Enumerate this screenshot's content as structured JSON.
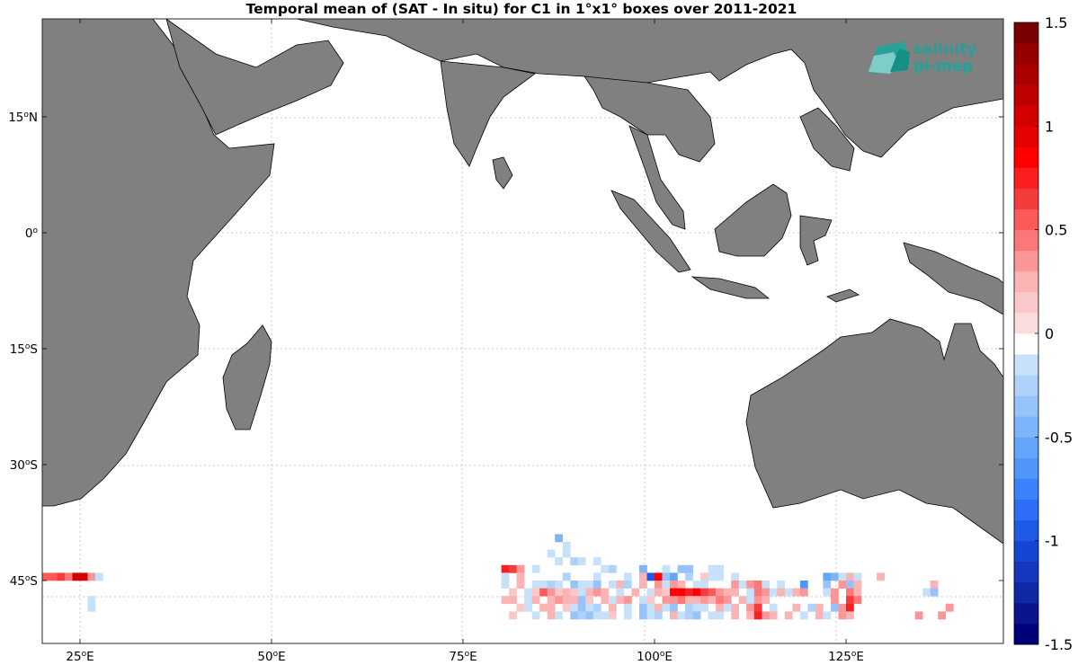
{
  "title": "Temporal mean of (SAT - In situ) for C1 in 1°x1° boxes over 2011-2021",
  "logo": {
    "line1": "salinity",
    "line2": "pi-mep",
    "color": "#1fa39a"
  },
  "colors": {
    "land": "#808080",
    "ocean": "#ffffff",
    "coast": "#000000"
  },
  "x_ticks": [
    {
      "value": 25,
      "label": "25",
      "suffix": "E"
    },
    {
      "value": 50,
      "label": "50",
      "suffix": "E"
    },
    {
      "value": 75,
      "label": "75",
      "suffix": "E"
    },
    {
      "value": 100,
      "label": "100",
      "suffix": "E"
    },
    {
      "value": 125,
      "label": "125",
      "suffix": "E"
    }
  ],
  "y_ticks": [
    {
      "value": 15,
      "label": "15",
      "suffix": "N"
    },
    {
      "value": 0,
      "label": "0",
      "suffix": ""
    },
    {
      "value": -15,
      "label": "15",
      "suffix": "S"
    },
    {
      "value": -30,
      "label": "30",
      "suffix": "S"
    },
    {
      "value": -45,
      "label": "45",
      "suffix": "S"
    }
  ],
  "colorbar": {
    "min": -1.5,
    "max": 1.5,
    "tick_values": [
      1.5,
      1,
      0.5,
      0,
      -0.5,
      -1,
      -1.5
    ],
    "tick_labels": [
      "1.5",
      "1",
      "0.5",
      "0",
      "-0.5",
      "-1",
      "-1.5"
    ],
    "colors_bottom_to_top": [
      "#000078",
      "#0a148c",
      "#0f28a5",
      "#1437be",
      "#1446d2",
      "#1e5ae6",
      "#2d6ef5",
      "#3c82fa",
      "#5096fa",
      "#64a5fa",
      "#7db4fa",
      "#96c3fa",
      "#afd2fa",
      "#c8e1fa",
      "#ffffff",
      "#fadcdc",
      "#fac8c8",
      "#fab4b4",
      "#fa9696",
      "#fa7878",
      "#fa5a5a",
      "#f53c3c",
      "#fa1e1e",
      "#ff0000",
      "#e60000",
      "#d20000",
      "#be0000",
      "#aa0000",
      "#960000",
      "#780000"
    ]
  },
  "chart_data": {
    "type": "heatmap",
    "title": "Temporal mean of (SAT - In situ) for C1 in 1°x1° boxes over 2011-2021",
    "x_range": [
      20,
      146
    ],
    "y_range": [
      -50,
      30
    ],
    "cell_size_deg": 1,
    "cells": [
      {
        "lon": 20.5,
        "lat": -44.5,
        "v": 0.55
      },
      {
        "lon": 21.5,
        "lat": -44.5,
        "v": 0.5
      },
      {
        "lon": 22.5,
        "lat": -44.5,
        "v": 0.6
      },
      {
        "lon": 23.5,
        "lat": -44.5,
        "v": 0.45
      },
      {
        "lon": 24.5,
        "lat": -44.5,
        "v": 1.0
      },
      {
        "lon": 25.5,
        "lat": -44.5,
        "v": 1.0
      },
      {
        "lon": 26.5,
        "lat": -44.5,
        "v": 0.3
      },
      {
        "lon": 27.5,
        "lat": -44.5,
        "v": -0.1
      },
      {
        "lon": 26.5,
        "lat": -47.5,
        "v": -0.1
      },
      {
        "lon": 26.5,
        "lat": -48.5,
        "v": -0.1
      },
      {
        "lon": 87.5,
        "lat": -39.5,
        "v": -0.45
      },
      {
        "lon": 88.5,
        "lat": -40.5,
        "v": -0.2
      },
      {
        "lon": 86.5,
        "lat": -41.5,
        "v": -0.2
      },
      {
        "lon": 88.5,
        "lat": -41.5,
        "v": -0.1
      },
      {
        "lon": 87.5,
        "lat": -42.5,
        "v": -0.2
      },
      {
        "lon": 89.5,
        "lat": -42.5,
        "v": -0.25
      },
      {
        "lon": 90.5,
        "lat": -42.5,
        "v": -0.1
      },
      {
        "lon": 92.5,
        "lat": -42.5,
        "v": -0.2
      },
      {
        "lon": 80.5,
        "lat": -43.5,
        "v": 0.7
      },
      {
        "lon": 81.5,
        "lat": -43.5,
        "v": 0.6
      },
      {
        "lon": 82.5,
        "lat": -43.5,
        "v": 0.3
      },
      {
        "lon": 84.5,
        "lat": -43.5,
        "v": -0.1
      },
      {
        "lon": 93.5,
        "lat": -43.5,
        "v": -0.2
      },
      {
        "lon": 94.5,
        "lat": -43.5,
        "v": -0.25
      },
      {
        "lon": 98.5,
        "lat": -43.5,
        "v": -0.45
      },
      {
        "lon": 101.5,
        "lat": -43.5,
        "v": -0.2
      },
      {
        "lon": 103.5,
        "lat": -43.5,
        "v": -0.35
      },
      {
        "lon": 104.5,
        "lat": -43.5,
        "v": -0.35
      },
      {
        "lon": 107.5,
        "lat": -43.5,
        "v": -0.2
      },
      {
        "lon": 108.5,
        "lat": -43.5,
        "v": -0.15
      },
      {
        "lon": 80.5,
        "lat": -44.5,
        "v": -0.1
      },
      {
        "lon": 82.5,
        "lat": -44.5,
        "v": 0.2
      },
      {
        "lon": 88.5,
        "lat": -44.5,
        "v": -0.25
      },
      {
        "lon": 92.5,
        "lat": -44.5,
        "v": -0.1
      },
      {
        "lon": 96.5,
        "lat": -44.5,
        "v": -0.15
      },
      {
        "lon": 98.5,
        "lat": -44.5,
        "v": 0.25
      },
      {
        "lon": 99.5,
        "lat": -44.5,
        "v": -1.0
      },
      {
        "lon": 100.5,
        "lat": -44.5,
        "v": 0.8
      },
      {
        "lon": 101.5,
        "lat": -44.5,
        "v": -0.35
      },
      {
        "lon": 102.5,
        "lat": -44.5,
        "v": -0.6
      },
      {
        "lon": 104.5,
        "lat": -44.5,
        "v": -0.25
      },
      {
        "lon": 106.5,
        "lat": -44.5,
        "v": 0.15
      },
      {
        "lon": 107.5,
        "lat": -44.5,
        "v": -0.2
      },
      {
        "lon": 108.5,
        "lat": -44.5,
        "v": -0.1
      },
      {
        "lon": 110.5,
        "lat": -44.5,
        "v": -0.2
      },
      {
        "lon": 122.5,
        "lat": -44.5,
        "v": -0.6
      },
      {
        "lon": 123.5,
        "lat": -44.5,
        "v": -0.45
      },
      {
        "lon": 124.5,
        "lat": -44.5,
        "v": -0.2
      },
      {
        "lon": 125.5,
        "lat": -44.5,
        "v": 0.25
      },
      {
        "lon": 126.5,
        "lat": -44.5,
        "v": -0.15
      },
      {
        "lon": 129.5,
        "lat": -44.5,
        "v": 0.2
      },
      {
        "lon": 80.5,
        "lat": -45.5,
        "v": -0.15
      },
      {
        "lon": 82.5,
        "lat": -45.5,
        "v": 0.2
      },
      {
        "lon": 84.5,
        "lat": -45.5,
        "v": -0.15
      },
      {
        "lon": 85.5,
        "lat": -45.5,
        "v": -0.1
      },
      {
        "lon": 86.5,
        "lat": -45.5,
        "v": -0.25
      },
      {
        "lon": 87.5,
        "lat": -45.5,
        "v": -0.1
      },
      {
        "lon": 89.5,
        "lat": -45.5,
        "v": -0.35
      },
      {
        "lon": 90.5,
        "lat": -45.5,
        "v": -0.2
      },
      {
        "lon": 91.5,
        "lat": -45.5,
        "v": -0.1
      },
      {
        "lon": 92.5,
        "lat": -45.5,
        "v": -0.3
      },
      {
        "lon": 94.5,
        "lat": -45.5,
        "v": -0.15
      },
      {
        "lon": 95.5,
        "lat": -45.5,
        "v": 0.2
      },
      {
        "lon": 96.5,
        "lat": -45.5,
        "v": -0.25
      },
      {
        "lon": 98.5,
        "lat": -45.5,
        "v": 0.2
      },
      {
        "lon": 100.5,
        "lat": -45.5,
        "v": 0.35
      },
      {
        "lon": 101.5,
        "lat": -45.5,
        "v": -0.15
      },
      {
        "lon": 102.5,
        "lat": -45.5,
        "v": 0.3
      },
      {
        "lon": 103.5,
        "lat": -45.5,
        "v": 0.25
      },
      {
        "lon": 105.5,
        "lat": -45.5,
        "v": -0.2
      },
      {
        "lon": 106.5,
        "lat": -45.5,
        "v": -0.1
      },
      {
        "lon": 110.5,
        "lat": -45.5,
        "v": 0.3
      },
      {
        "lon": 111.5,
        "lat": -45.5,
        "v": -0.2
      },
      {
        "lon": 112.5,
        "lat": -45.5,
        "v": 0.35
      },
      {
        "lon": 113.5,
        "lat": -45.5,
        "v": 0.4
      },
      {
        "lon": 114.5,
        "lat": -45.5,
        "v": -0.15
      },
      {
        "lon": 116.5,
        "lat": -45.5,
        "v": -0.1
      },
      {
        "lon": 119.5,
        "lat": -45.5,
        "v": -0.7
      },
      {
        "lon": 122.5,
        "lat": -45.5,
        "v": -0.35
      },
      {
        "lon": 124.5,
        "lat": -45.5,
        "v": 0.3
      },
      {
        "lon": 125.5,
        "lat": -45.5,
        "v": -0.3
      },
      {
        "lon": 126.5,
        "lat": -45.5,
        "v": 0.2
      },
      {
        "lon": 136.5,
        "lat": -45.5,
        "v": 0.2
      },
      {
        "lon": 81.5,
        "lat": -46.5,
        "v": 0.15
      },
      {
        "lon": 83.5,
        "lat": -46.5,
        "v": -0.15
      },
      {
        "lon": 84.5,
        "lat": -46.5,
        "v": 0.15
      },
      {
        "lon": 85.5,
        "lat": -46.5,
        "v": 0.5
      },
      {
        "lon": 86.5,
        "lat": -46.5,
        "v": 0.35
      },
      {
        "lon": 87.5,
        "lat": -46.5,
        "v": 0.15
      },
      {
        "lon": 88.5,
        "lat": -46.5,
        "v": 0.2
      },
      {
        "lon": 89.5,
        "lat": -46.5,
        "v": 0.15
      },
      {
        "lon": 90.5,
        "lat": -46.5,
        "v": -0.15
      },
      {
        "lon": 91.5,
        "lat": -46.5,
        "v": 0.25
      },
      {
        "lon": 92.5,
        "lat": -46.5,
        "v": 0.35
      },
      {
        "lon": 93.5,
        "lat": -46.5,
        "v": 0.25
      },
      {
        "lon": 95.5,
        "lat": -46.5,
        "v": -0.2
      },
      {
        "lon": 97.5,
        "lat": -46.5,
        "v": 0.2
      },
      {
        "lon": 99.5,
        "lat": -46.5,
        "v": -0.15
      },
      {
        "lon": 100.5,
        "lat": -46.5,
        "v": 0.2
      },
      {
        "lon": 101.5,
        "lat": -46.5,
        "v": 0.15
      },
      {
        "lon": 102.5,
        "lat": -46.5,
        "v": 0.85
      },
      {
        "lon": 103.5,
        "lat": -46.5,
        "v": 0.85
      },
      {
        "lon": 104.5,
        "lat": -46.5,
        "v": 0.7
      },
      {
        "lon": 105.5,
        "lat": -46.5,
        "v": 0.8
      },
      {
        "lon": 106.5,
        "lat": -46.5,
        "v": 0.65
      },
      {
        "lon": 107.5,
        "lat": -46.5,
        "v": 0.5
      },
      {
        "lon": 108.5,
        "lat": -46.5,
        "v": 0.3
      },
      {
        "lon": 109.5,
        "lat": -46.5,
        "v": 0.25
      },
      {
        "lon": 110.5,
        "lat": -46.5,
        "v": 0.2
      },
      {
        "lon": 112.5,
        "lat": -46.5,
        "v": -0.2
      },
      {
        "lon": 113.5,
        "lat": -46.5,
        "v": 0.45
      },
      {
        "lon": 114.5,
        "lat": -46.5,
        "v": 0.3
      },
      {
        "lon": 115.5,
        "lat": -46.5,
        "v": -0.1
      },
      {
        "lon": 116.5,
        "lat": -46.5,
        "v": 0.2
      },
      {
        "lon": 117.5,
        "lat": -46.5,
        "v": -0.15
      },
      {
        "lon": 118.5,
        "lat": -46.5,
        "v": 0.25
      },
      {
        "lon": 119.5,
        "lat": -46.5,
        "v": 0.3
      },
      {
        "lon": 122.5,
        "lat": -46.5,
        "v": -0.2
      },
      {
        "lon": 123.5,
        "lat": -46.5,
        "v": 0.3
      },
      {
        "lon": 125.5,
        "lat": -46.5,
        "v": 0.4
      },
      {
        "lon": 126.5,
        "lat": -46.5,
        "v": 0.2
      },
      {
        "lon": 135.5,
        "lat": -46.5,
        "v": -0.2
      },
      {
        "lon": 136.5,
        "lat": -46.5,
        "v": -0.35
      },
      {
        "lon": 80.5,
        "lat": -47.5,
        "v": 0.2
      },
      {
        "lon": 81.5,
        "lat": -47.5,
        "v": 0.25
      },
      {
        "lon": 83.5,
        "lat": -47.5,
        "v": -0.15
      },
      {
        "lon": 84.5,
        "lat": -47.5,
        "v": 0.2
      },
      {
        "lon": 86.5,
        "lat": -47.5,
        "v": 0.25
      },
      {
        "lon": 87.5,
        "lat": -47.5,
        "v": 0.3
      },
      {
        "lon": 88.5,
        "lat": -47.5,
        "v": 0.2
      },
      {
        "lon": 89.5,
        "lat": -47.5,
        "v": 0.25
      },
      {
        "lon": 90.5,
        "lat": -47.5,
        "v": -0.3
      },
      {
        "lon": 91.5,
        "lat": -47.5,
        "v": 0.15
      },
      {
        "lon": 93.5,
        "lat": -47.5,
        "v": 0.2
      },
      {
        "lon": 94.5,
        "lat": -47.5,
        "v": -0.15
      },
      {
        "lon": 95.5,
        "lat": -47.5,
        "v": 0.25
      },
      {
        "lon": 96.5,
        "lat": -47.5,
        "v": 0.3
      },
      {
        "lon": 98.5,
        "lat": -47.5,
        "v": -0.2
      },
      {
        "lon": 99.5,
        "lat": -47.5,
        "v": 0.15
      },
      {
        "lon": 101.5,
        "lat": -47.5,
        "v": 0.3
      },
      {
        "lon": 102.5,
        "lat": -47.5,
        "v": 0.35
      },
      {
        "lon": 103.5,
        "lat": -47.5,
        "v": 0.4
      },
      {
        "lon": 104.5,
        "lat": -47.5,
        "v": 0.2
      },
      {
        "lon": 105.5,
        "lat": -47.5,
        "v": 0.25
      },
      {
        "lon": 106.5,
        "lat": -47.5,
        "v": 0.3
      },
      {
        "lon": 107.5,
        "lat": -47.5,
        "v": 0.2
      },
      {
        "lon": 108.5,
        "lat": -47.5,
        "v": 0.45
      },
      {
        "lon": 109.5,
        "lat": -47.5,
        "v": 0.35
      },
      {
        "lon": 111.5,
        "lat": -47.5,
        "v": 0.2
      },
      {
        "lon": 112.5,
        "lat": -47.5,
        "v": -0.2
      },
      {
        "lon": 113.5,
        "lat": -47.5,
        "v": 0.3
      },
      {
        "lon": 114.5,
        "lat": -47.5,
        "v": 0.2
      },
      {
        "lon": 123.5,
        "lat": -47.5,
        "v": 0.3
      },
      {
        "lon": 125.5,
        "lat": -47.5,
        "v": 0.6
      },
      {
        "lon": 126.5,
        "lat": -47.5,
        "v": 0.45
      },
      {
        "lon": 82.5,
        "lat": -48.5,
        "v": 0.15
      },
      {
        "lon": 83.5,
        "lat": -48.5,
        "v": -0.1
      },
      {
        "lon": 85.5,
        "lat": -48.5,
        "v": 0.2
      },
      {
        "lon": 86.5,
        "lat": -48.5,
        "v": 0.25
      },
      {
        "lon": 88.5,
        "lat": -48.5,
        "v": 0.15
      },
      {
        "lon": 89.5,
        "lat": -48.5,
        "v": -0.2
      },
      {
        "lon": 90.5,
        "lat": -48.5,
        "v": -0.3
      },
      {
        "lon": 91.5,
        "lat": -48.5,
        "v": -0.15
      },
      {
        "lon": 92.5,
        "lat": -48.5,
        "v": -0.25
      },
      {
        "lon": 94.5,
        "lat": -48.5,
        "v": 0.2
      },
      {
        "lon": 96.5,
        "lat": -48.5,
        "v": -0.2
      },
      {
        "lon": 98.5,
        "lat": -48.5,
        "v": -0.35
      },
      {
        "lon": 99.5,
        "lat": -48.5,
        "v": -0.2
      },
      {
        "lon": 100.5,
        "lat": -48.5,
        "v": 0.25
      },
      {
        "lon": 101.5,
        "lat": -48.5,
        "v": -0.2
      },
      {
        "lon": 102.5,
        "lat": -48.5,
        "v": -0.3
      },
      {
        "lon": 104.5,
        "lat": -48.5,
        "v": -0.25
      },
      {
        "lon": 105.5,
        "lat": -48.5,
        "v": -0.2
      },
      {
        "lon": 106.5,
        "lat": -48.5,
        "v": -0.15
      },
      {
        "lon": 108.5,
        "lat": -48.5,
        "v": 0.2
      },
      {
        "lon": 109.5,
        "lat": -48.5,
        "v": -0.2
      },
      {
        "lon": 110.5,
        "lat": -48.5,
        "v": 0.25
      },
      {
        "lon": 112.5,
        "lat": -48.5,
        "v": 0.3
      },
      {
        "lon": 113.5,
        "lat": -48.5,
        "v": 0.6
      },
      {
        "lon": 115.5,
        "lat": -48.5,
        "v": -0.15
      },
      {
        "lon": 118.5,
        "lat": -48.5,
        "v": 0.2
      },
      {
        "lon": 120.5,
        "lat": -48.5,
        "v": -0.25
      },
      {
        "lon": 121.5,
        "lat": -48.5,
        "v": 0.2
      },
      {
        "lon": 123.5,
        "lat": -48.5,
        "v": -0.3
      },
      {
        "lon": 124.5,
        "lat": -48.5,
        "v": 0.3
      },
      {
        "lon": 125.5,
        "lat": -48.5,
        "v": 0.7
      },
      {
        "lon": 138.5,
        "lat": -48.5,
        "v": 0.3
      },
      {
        "lon": 81.5,
        "lat": -49.5,
        "v": 0.15
      },
      {
        "lon": 84.5,
        "lat": -49.5,
        "v": -0.15
      },
      {
        "lon": 86.5,
        "lat": -49.5,
        "v": 0.2
      },
      {
        "lon": 87.5,
        "lat": -49.5,
        "v": -0.2
      },
      {
        "lon": 89.5,
        "lat": -49.5,
        "v": -0.3
      },
      {
        "lon": 90.5,
        "lat": -49.5,
        "v": -0.25
      },
      {
        "lon": 91.5,
        "lat": -49.5,
        "v": -0.35
      },
      {
        "lon": 92.5,
        "lat": -49.5,
        "v": -0.15
      },
      {
        "lon": 93.5,
        "lat": -49.5,
        "v": -0.2
      },
      {
        "lon": 94.5,
        "lat": -49.5,
        "v": 0.15
      },
      {
        "lon": 96.5,
        "lat": -49.5,
        "v": -0.2
      },
      {
        "lon": 98.5,
        "lat": -49.5,
        "v": -0.4
      },
      {
        "lon": 99.5,
        "lat": -49.5,
        "v": -0.2
      },
      {
        "lon": 100.5,
        "lat": -49.5,
        "v": -0.25
      },
      {
        "lon": 102.5,
        "lat": -49.5,
        "v": 0.2
      },
      {
        "lon": 103.5,
        "lat": -49.5,
        "v": -0.2
      },
      {
        "lon": 104.5,
        "lat": -49.5,
        "v": -0.25
      },
      {
        "lon": 105.5,
        "lat": -49.5,
        "v": -0.3
      },
      {
        "lon": 107.5,
        "lat": -49.5,
        "v": -0.2
      },
      {
        "lon": 108.5,
        "lat": -49.5,
        "v": -0.15
      },
      {
        "lon": 110.5,
        "lat": -49.5,
        "v": 0.2
      },
      {
        "lon": 112.5,
        "lat": -49.5,
        "v": 0.25
      },
      {
        "lon": 113.5,
        "lat": -49.5,
        "v": 0.7
      },
      {
        "lon": 114.5,
        "lat": -49.5,
        "v": 0.3
      },
      {
        "lon": 115.5,
        "lat": -49.5,
        "v": 0.2
      },
      {
        "lon": 117.5,
        "lat": -49.5,
        "v": 0.2
      },
      {
        "lon": 119.5,
        "lat": -49.5,
        "v": -0.2
      },
      {
        "lon": 121.5,
        "lat": -49.5,
        "v": 0.25
      },
      {
        "lon": 122.5,
        "lat": -49.5,
        "v": -0.2
      },
      {
        "lon": 124.5,
        "lat": -49.5,
        "v": 0.3
      },
      {
        "lon": 125.5,
        "lat": -49.5,
        "v": 0.25
      },
      {
        "lon": 134.5,
        "lat": -49.5,
        "v": 0.3
      },
      {
        "lon": 137.5,
        "lat": -49.5,
        "v": 0.35
      }
    ]
  }
}
